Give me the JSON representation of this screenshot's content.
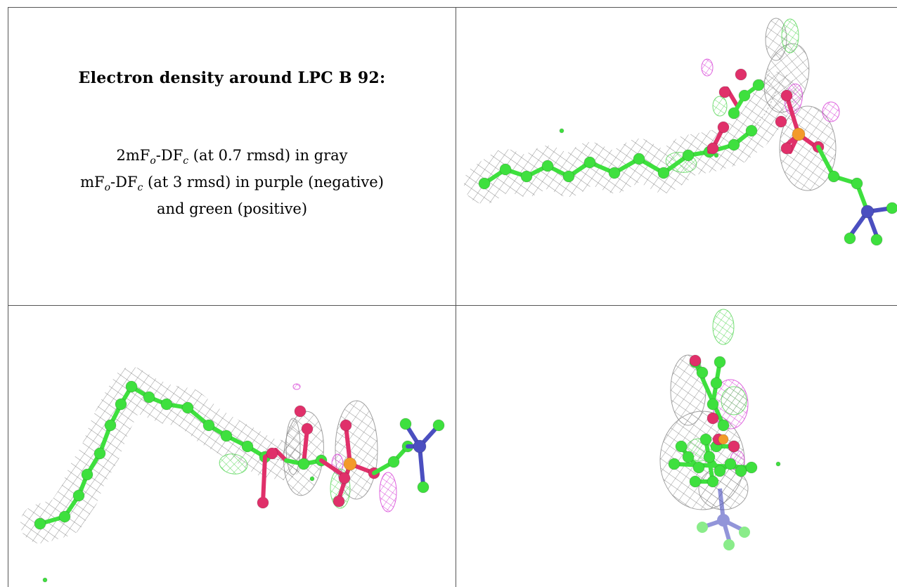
{
  "figure": {
    "title": "Electron density around LPC B 92:",
    "line1": {
      "pre": "2mF",
      "sub1": "o",
      "mid": "-DF",
      "sub2": "c",
      "post": " (at 0.7 rmsd) in gray"
    },
    "line2": {
      "pre": "mF",
      "sub1": "o",
      "mid": "-DF",
      "sub2": "c",
      "post": " (at 3 rmsd) in purple (negative)"
    },
    "line3": "and green (positive)"
  },
  "colors": {
    "carbon": "#3ee03e",
    "oxygen": "#e0306a",
    "phosphorus": "#f39a2a",
    "nitrogen": "#4b4fc0",
    "mesh_gray": "#8a8a8a",
    "mesh_purple": "#d63cd6",
    "mesh_green": "#55d655"
  },
  "panels": [
    {
      "name": "view-top-right",
      "icon": "molecule-density-view"
    },
    {
      "name": "view-bottom-left",
      "icon": "molecule-density-view"
    },
    {
      "name": "view-bottom-right",
      "icon": "molecule-density-view"
    }
  ]
}
